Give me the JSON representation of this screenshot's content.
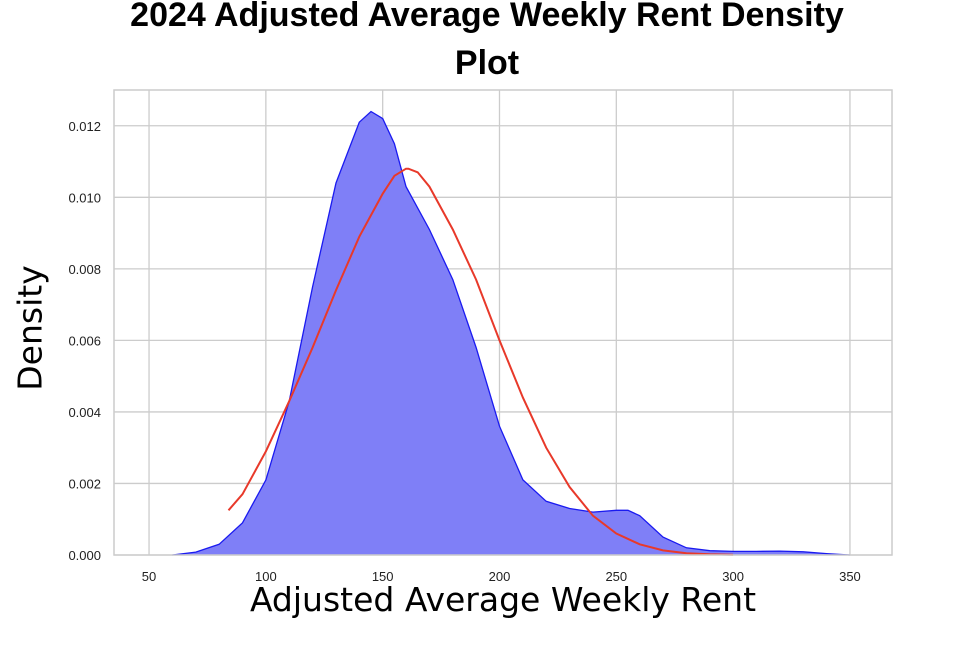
{
  "chart_data": {
    "type": "area",
    "title_lines": [
      "2024 Adjusted Average Weekly Rent Density",
      "Plot"
    ],
    "xlabel": "Adjusted Average Weekly Rent",
    "ylabel": "Density",
    "xlim": [
      35,
      368
    ],
    "ylim": [
      0,
      0.013
    ],
    "xticks": [
      50,
      100,
      150,
      200,
      250,
      300,
      350
    ],
    "yticks": [
      0.0,
      0.002,
      0.004,
      0.006,
      0.008,
      0.01,
      0.012
    ],
    "ytick_labels": [
      "0.000",
      "0.002",
      "0.004",
      "0.006",
      "0.008",
      "0.010",
      "0.012"
    ],
    "grid": true,
    "colors": {
      "kde_fill": "#7f7ff7",
      "kde_line": "#1a1af0",
      "normal_line": "#e8392a",
      "grid": "#cccccc",
      "frame": "#cccccc"
    },
    "series": [
      {
        "kind": "kde-area",
        "x": [
          60,
          70,
          80,
          90,
          100,
          110,
          120,
          130,
          140,
          145,
          150,
          155,
          160,
          170,
          180,
          190,
          200,
          210,
          220,
          230,
          240,
          250,
          255,
          260,
          270,
          280,
          290,
          300,
          310,
          320,
          330,
          340,
          350
        ],
        "y": [
          0.0,
          8e-05,
          0.0003,
          0.0009,
          0.0021,
          0.0043,
          0.0075,
          0.0104,
          0.0121,
          0.0124,
          0.0122,
          0.0115,
          0.0103,
          0.0091,
          0.0077,
          0.0058,
          0.0036,
          0.0021,
          0.0015,
          0.0013,
          0.0012,
          0.00125,
          0.00125,
          0.0011,
          0.0005,
          0.0002,
          0.00012,
          0.0001,
          0.0001,
          0.00011,
          9e-05,
          4e-05,
          0.0
        ]
      },
      {
        "kind": "normal-curve",
        "x": [
          84,
          90,
          100,
          110,
          120,
          130,
          140,
          150,
          155,
          160,
          161,
          165,
          170,
          180,
          190,
          200,
          210,
          220,
          230,
          240,
          250,
          260,
          270,
          280,
          290,
          300
        ],
        "y": [
          0.00125,
          0.0017,
          0.0029,
          0.0043,
          0.0058,
          0.0074,
          0.0089,
          0.0101,
          0.0106,
          0.0108,
          0.0108,
          0.0107,
          0.0103,
          0.0091,
          0.0077,
          0.006,
          0.0044,
          0.003,
          0.0019,
          0.0011,
          0.0006,
          0.0003,
          0.00013,
          5e-05,
          2e-05,
          5e-06
        ]
      }
    ]
  }
}
